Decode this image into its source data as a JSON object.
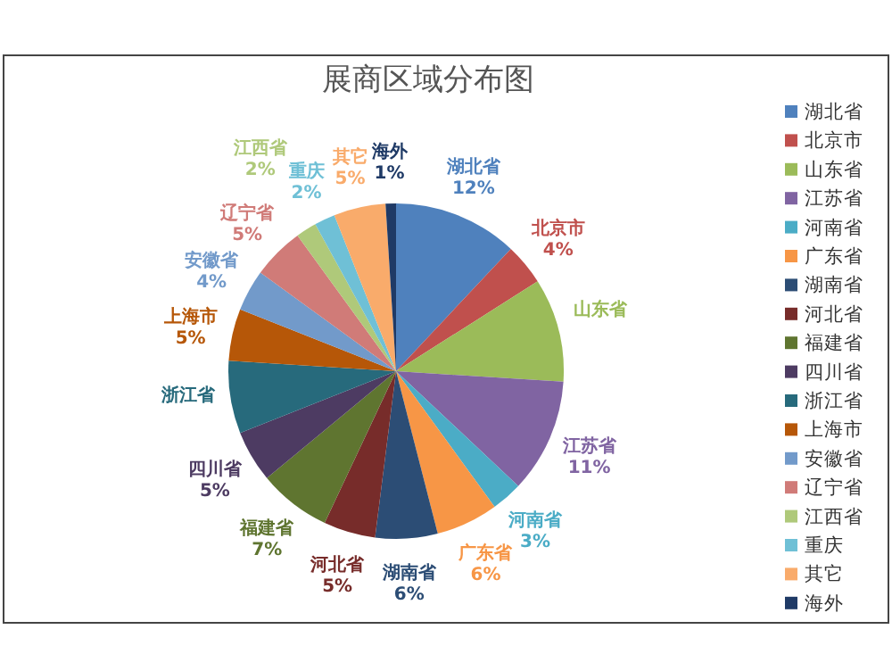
{
  "chart_data": {
    "type": "pie",
    "title": "展商区域分布图",
    "categories": [
      "湖北省",
      "北京市",
      "山东省",
      "江苏省",
      "河南省",
      "广东省",
      "湖南省",
      "河北省",
      "福建省",
      "四川省",
      "浙江省",
      "上海市",
      "安徽省",
      "辽宁省",
      "江西省",
      "重庆",
      "其它",
      "海外"
    ],
    "values": [
      12,
      4,
      10,
      11,
      3,
      6,
      6,
      5,
      7,
      5,
      7,
      5,
      4,
      5,
      2,
      2,
      5,
      1
    ],
    "value_labels": [
      "12%",
      "4%",
      null,
      "11%",
      "3%",
      "6%",
      "6%",
      "5%",
      "7%",
      "5%",
      null,
      "5%",
      "4%",
      "5%",
      "2%",
      "2%",
      "5%",
      "1%"
    ],
    "colors": [
      "#4f81bd",
      "#c0504d",
      "#9bbb59",
      "#8064a2",
      "#4bacc6",
      "#f79646",
      "#2c4d75",
      "#772c2a",
      "#5f7530",
      "#4d3b62",
      "#276a7c",
      "#b65708",
      "#729aca",
      "#d07b78",
      "#afc97a",
      "#6fc0d6",
      "#f9ab6b",
      "#1f3a66"
    ],
    "legend": "right"
  }
}
